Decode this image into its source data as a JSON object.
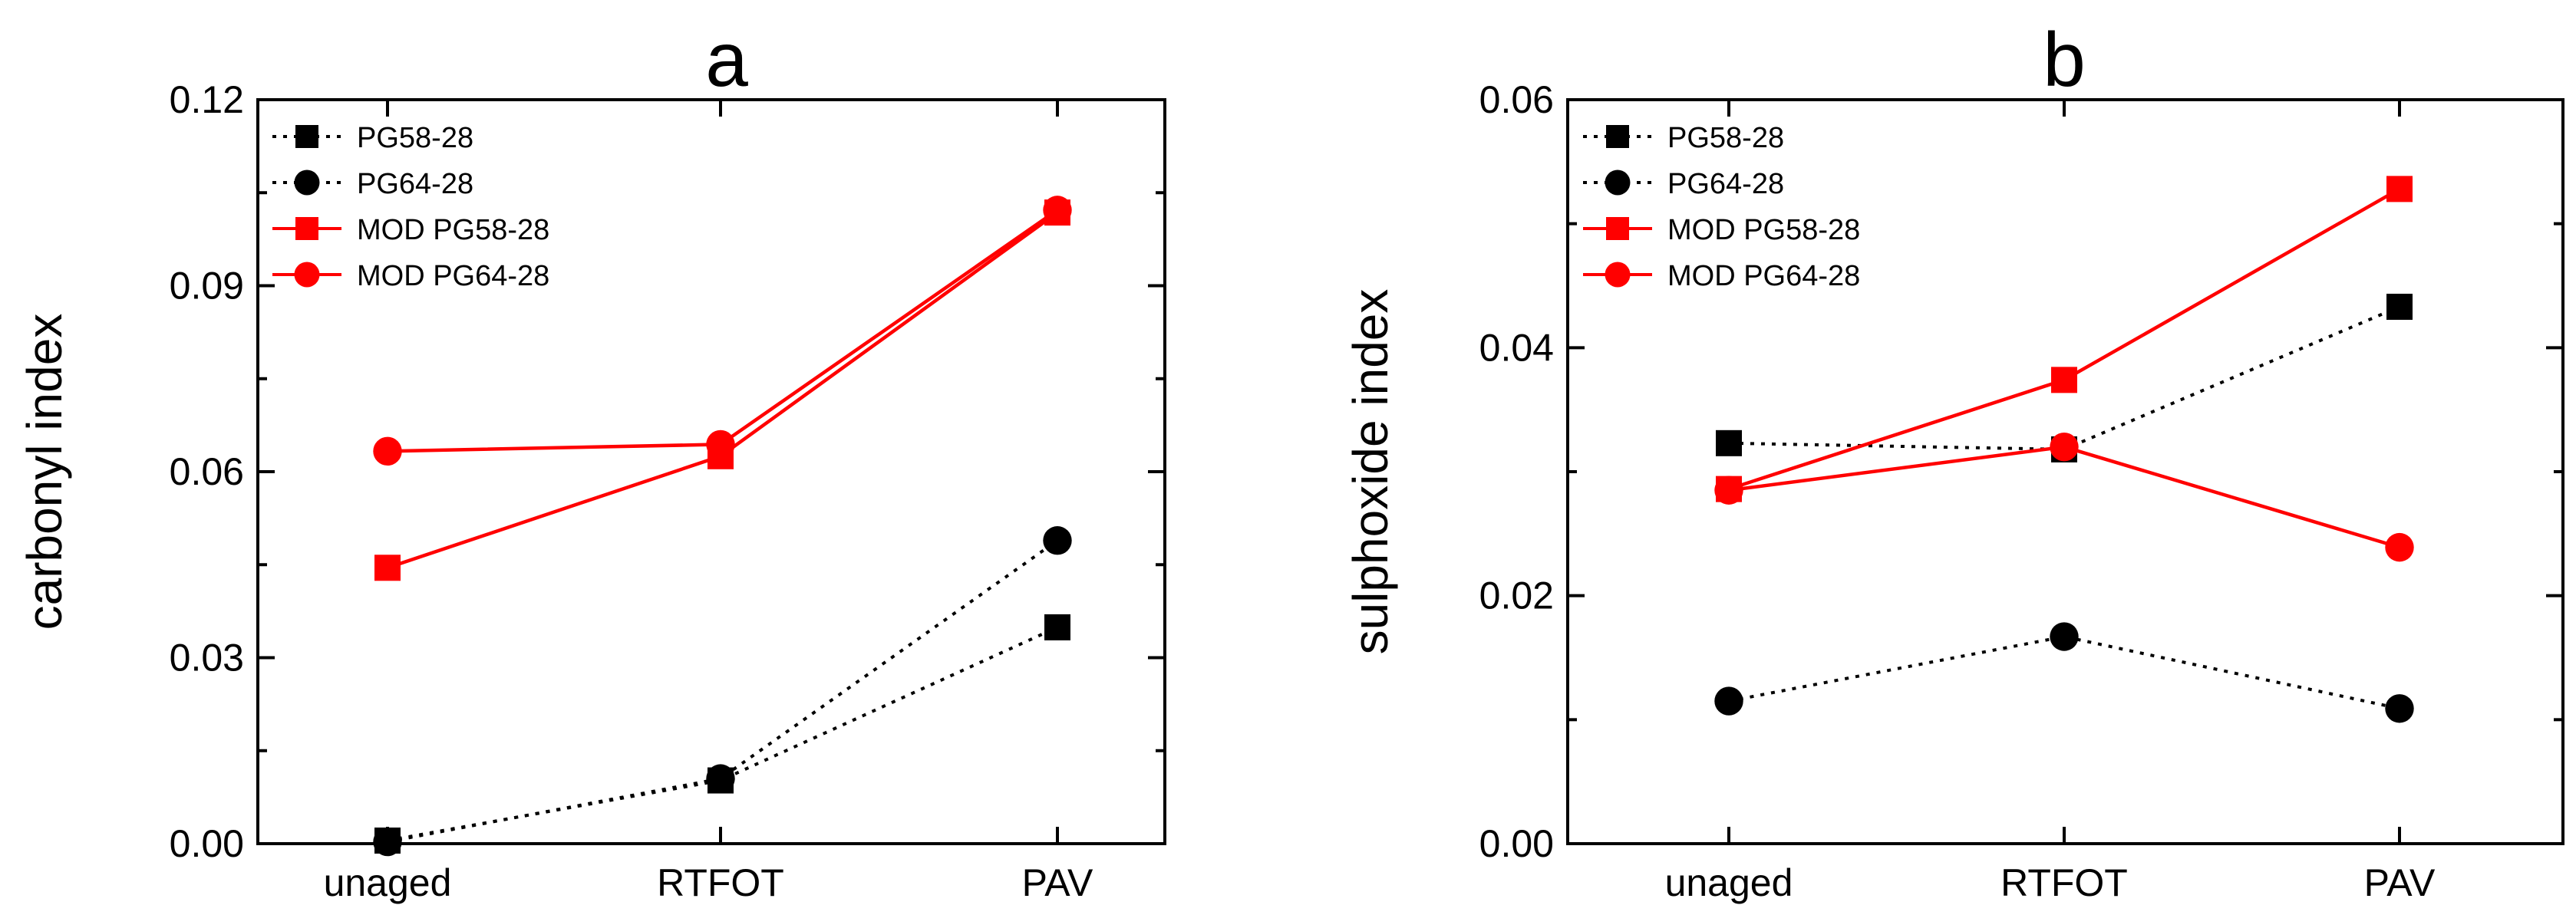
{
  "chart_data": [
    {
      "type": "line",
      "title": "a",
      "xlabel": "",
      "ylabel": "carbonyl index",
      "categories": [
        "unaged",
        "RTFOT",
        "PAV"
      ],
      "ylim": [
        0,
        0.12
      ],
      "yticks": [
        "0.00",
        "0.03",
        "0.06",
        "0.09",
        "0.12"
      ],
      "ytick_values": [
        0,
        0.03,
        0.06,
        0.09,
        0.12
      ],
      "legend_position": "top-left",
      "series": [
        {
          "name": "PG58-28",
          "color": "#000000",
          "marker": "square",
          "line": "dotted",
          "values": [
            0.0005,
            0.0102,
            0.0349
          ]
        },
        {
          "name": "PG64-28",
          "color": "#000000",
          "marker": "circle",
          "line": "dotted",
          "values": [
            0.0003,
            0.0105,
            0.0489
          ]
        },
        {
          "name": "MOD PG58-28",
          "color": "#ff0000",
          "marker": "square",
          "line": "solid",
          "values": [
            0.0445,
            0.0625,
            0.1018
          ]
        },
        {
          "name": "MOD PG64-28",
          "color": "#ff0000",
          "marker": "circle",
          "line": "solid",
          "values": [
            0.0633,
            0.0644,
            0.1022
          ]
        }
      ]
    },
    {
      "type": "line",
      "title": "b",
      "xlabel": "",
      "ylabel": "sulphoxide index",
      "categories": [
        "unaged",
        "RTFOT",
        "PAV"
      ],
      "ylim": [
        0,
        0.06
      ],
      "yticks": [
        "0.00",
        "0.02",
        "0.04",
        "0.06"
      ],
      "ytick_values": [
        0,
        0.02,
        0.04,
        0.06
      ],
      "legend_position": "top-left",
      "series": [
        {
          "name": "PG58-28",
          "color": "#000000",
          "marker": "square",
          "line": "dotted",
          "values": [
            0.0323,
            0.0318,
            0.0433
          ]
        },
        {
          "name": "PG64-28",
          "color": "#000000",
          "marker": "circle",
          "line": "dotted",
          "values": [
            0.0115,
            0.0167,
            0.0109
          ]
        },
        {
          "name": "MOD PG58-28",
          "color": "#ff0000",
          "marker": "square",
          "line": "solid",
          "values": [
            0.0286,
            0.0374,
            0.0528
          ]
        },
        {
          "name": "MOD PG64-28",
          "color": "#ff0000",
          "marker": "circle",
          "line": "solid",
          "values": [
            0.0285,
            0.032,
            0.0239
          ]
        }
      ]
    }
  ]
}
